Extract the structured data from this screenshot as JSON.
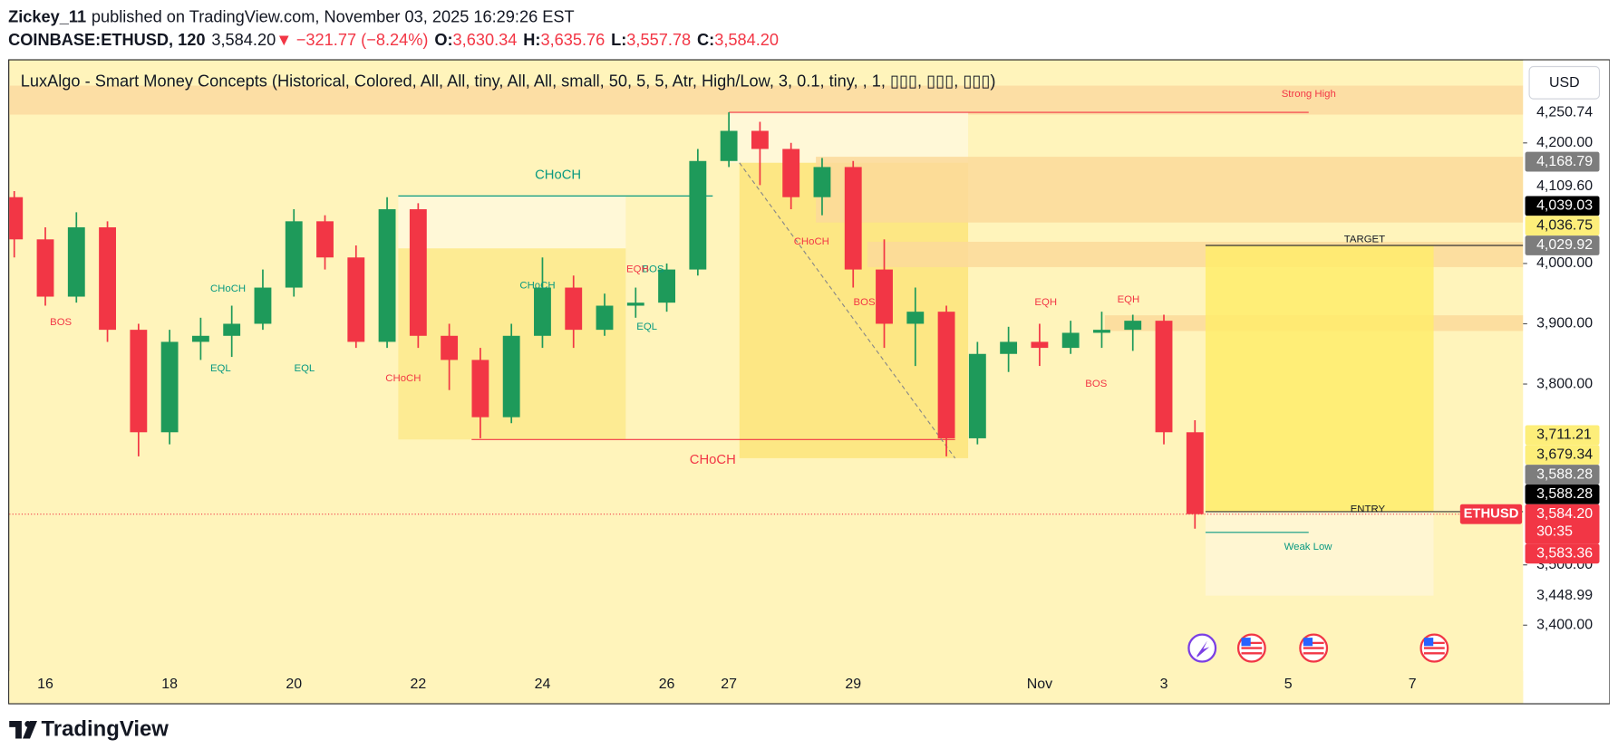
{
  "header": {
    "author": "Zickey_11",
    "published": "published on TradingView.com, November 03, 2025 16:29:26 EST",
    "symbol": "COINBASE:ETHUSD, 120",
    "price": "3,584.20",
    "arrow": "▼",
    "change": "−321.77 (−8.24%)",
    "o_label": "O:",
    "open": "3,630.34",
    "h_label": "H:",
    "high": "3,635.76",
    "l_label": "L:",
    "low": "3,557.78",
    "c_label": "C:",
    "close": "3,584.20"
  },
  "chart_data": {
    "type": "candlestick",
    "indicator_title": "LuxAlgo - Smart Money Concepts (Historical, Colored, All, All, tiny, All, All, small, 50, 5, 5, Atr, High/Low, 3, 0.1, tiny, , 1, ▯▯▯, ▯▯▯, ▯▯▯)",
    "currency": "USD",
    "symbol_tag": "ETHUSD",
    "countdown": "30:35",
    "up_color": "#1e9a5a",
    "down_color": "#f23645",
    "x": [
      15.5,
      16,
      16.5,
      17,
      17.5,
      18,
      18.5,
      19,
      19.5,
      20,
      20.5,
      21,
      21.5,
      22,
      22.5,
      23,
      23.5,
      24,
      24.5,
      25,
      25.5,
      26,
      26.5,
      27,
      27.5,
      28,
      28.5,
      29,
      29.5,
      30,
      30.5,
      31,
      31.5,
      32,
      32.5,
      33,
      33.5,
      34,
      34.5
    ],
    "open": [
      4110,
      4040,
      3945,
      4060,
      3890,
      3720,
      3870,
      3880,
      3900,
      3960,
      4070,
      4010,
      3870,
      4090,
      3880,
      3840,
      3745,
      3880,
      3960,
      3890,
      3930,
      3935,
      3990,
      4170,
      4220,
      4190,
      4110,
      4160,
      3990,
      3900,
      3920,
      3710,
      3850,
      3870,
      3860,
      3885,
      3890,
      3905,
      3720
    ],
    "high": [
      4120,
      4060,
      4085,
      4070,
      3900,
      3890,
      3910,
      3930,
      3990,
      4090,
      4080,
      4030,
      4110,
      4100,
      3900,
      3860,
      3900,
      4010,
      3980,
      3950,
      3960,
      4000,
      4190,
      4250.74,
      4235,
      4200,
      4175,
      4170,
      4040,
      3960,
      3930,
      3870,
      3895,
      3900,
      3905,
      3920,
      3915,
      3915,
      3740
    ],
    "low": [
      4010,
      3930,
      3935,
      3870,
      3680,
      3700,
      3840,
      3845,
      3890,
      3945,
      3990,
      3860,
      3860,
      3860,
      3790,
      3710,
      3735,
      3860,
      3860,
      3880,
      3910,
      3920,
      3980,
      4160,
      4130,
      4090,
      4080,
      3960,
      3860,
      3830,
      3680,
      3700,
      3820,
      3830,
      3850,
      3860,
      3855,
      3700,
      3560
    ],
    "close": [
      4040,
      3945,
      4060,
      3890,
      3720,
      3870,
      3880,
      3900,
      3960,
      4070,
      4010,
      3870,
      4090,
      3880,
      3840,
      3745,
      3880,
      3960,
      3890,
      3930,
      3935,
      3990,
      4170,
      4220,
      4190,
      4110,
      4160,
      3990,
      3900,
      3920,
      3710,
      3850,
      3870,
      3860,
      3885,
      3890,
      3905,
      3720,
      3584.2
    ],
    "xlim": [
      15.42,
      39.78
    ],
    "ylim": [
      3324,
      4337
    ],
    "xticks": [
      16,
      18,
      20,
      22,
      24,
      26,
      27,
      29,
      {
        "value": 32,
        "label": "Nov"
      },
      {
        "value": 34,
        "label": "3"
      },
      {
        "value": 36,
        "label": "5"
      },
      {
        "value": 38,
        "label": "7"
      }
    ],
    "yticks": [
      {
        "value": 3400,
        "label": "3,400.00"
      },
      {
        "value": 3500,
        "label": "3,500.00"
      },
      {
        "value": 3800,
        "label": "3,800.00"
      },
      {
        "value": 3900,
        "label": "3,900.00"
      },
      {
        "value": 4000,
        "label": "4,000.00"
      },
      {
        "value": 4200,
        "label": "4,200.00"
      }
    ],
    "price_tags": [
      {
        "value": 4250.74,
        "label": "4,250.74",
        "bg": "#ffffff",
        "fg": "#131722"
      },
      {
        "value": 4168.79,
        "label": "4,168.79",
        "bg": "#7d7d7d",
        "fg": "#ffffff"
      },
      {
        "value": 4109.6,
        "label": "4,109.60",
        "bg": "#ffffff",
        "fg": "#131722"
      },
      {
        "value": 4039.03,
        "label": "4,039.03",
        "bg": "#000000",
        "fg": "#ffffff"
      },
      {
        "value": 4036.75,
        "label": "4,036.75",
        "bg": "#fdee7a",
        "fg": "#131722"
      },
      {
        "value": 4029.92,
        "label": "4,029.92",
        "bg": "#7d7d7d",
        "fg": "#ffffff"
      },
      {
        "value": 3711.21,
        "label": "3,711.21",
        "bg": "#fdee7a",
        "fg": "#131722"
      },
      {
        "value": 3679.34,
        "label": "3,679.34",
        "bg": "#fdee7a",
        "fg": "#131722"
      },
      {
        "value": 3588.28,
        "label": "3,588.28",
        "bg": "#7d7d7d",
        "fg": "#ffffff"
      },
      {
        "value": 3588.28,
        "label": "3,588.28",
        "bg": "#000000",
        "fg": "#ffffff"
      },
      {
        "value": 3584.2,
        "label": "3,584.20",
        "bg": "#f23645",
        "fg": "#ffffff",
        "last": true
      },
      {
        "value": 3583.36,
        "label": "3,583.36",
        "bg": "#f23645",
        "fg": "#ffffff"
      },
      {
        "value": 3448.99,
        "label": "3,448.99",
        "bg": "#ffffff",
        "fg": "#131722"
      }
    ],
    "zones": [
      {
        "x": [
          15.42,
          39.78
        ],
        "y": [
          4247,
          4295
        ],
        "color": "#fcd9a0"
      },
      {
        "x": [
          21.68,
          25.34
        ],
        "y": [
          4025,
          4112
        ],
        "color": "#fff8dc"
      },
      {
        "x": [
          21.68,
          25.34
        ],
        "y": [
          3708,
          4025
        ],
        "color": "#fde98c"
      },
      {
        "x": [
          27.0,
          30.85
        ],
        "y": [
          4167,
          4250
        ],
        "color": "#fff8dc"
      },
      {
        "x": [
          27.17,
          30.85
        ],
        "y": [
          3677,
          4167
        ],
        "color": "#fde47a"
      },
      {
        "x": [
          28.4,
          39.78
        ],
        "y": [
          4068,
          4177
        ],
        "color": "#fbd99a"
      },
      {
        "x": [
          29.23,
          39.78
        ],
        "y": [
          3994,
          4036
        ],
        "color": "#fbd99a"
      },
      {
        "x": [
          33.05,
          39.78
        ],
        "y": [
          3888,
          3914
        ],
        "color": "#fbd99a"
      },
      {
        "x": [
          34.67,
          38.34
        ],
        "y": [
          3588.28,
          4029.92
        ],
        "color": "#ffec6b"
      },
      {
        "x": [
          34.67,
          38.34
        ],
        "y": [
          3448.99,
          3588.28
        ],
        "color": "#fff6d6"
      }
    ],
    "lines": [
      {
        "x": [
          27.0,
          36.33
        ],
        "y": [
          4250.74,
          4250.74
        ],
        "color": "#f23645"
      },
      {
        "x": [
          21.68,
          26.74
        ],
        "y": [
          4112,
          4112
        ],
        "color": "#089981"
      },
      {
        "x": [
          22.86,
          30.64
        ],
        "y": [
          3708,
          3708
        ],
        "color": "#f23645"
      },
      {
        "x": [
          34.67,
          39.78
        ],
        "y": [
          4029.92,
          4029.92
        ],
        "color": "#333333"
      },
      {
        "x": [
          34.67,
          39.78
        ],
        "y": [
          3588.28,
          3588.28
        ],
        "color": "#333333"
      },
      {
        "x": [
          34.67,
          36.33
        ],
        "y": [
          3554,
          3554
        ],
        "color": "#089981"
      },
      {
        "x": [
          27.17,
          30.64
        ],
        "y": [
          4167,
          3677
        ],
        "color": "#888888",
        "dash": true
      }
    ],
    "annotations": [
      {
        "text": "Strong High",
        "x": 36.33,
        "y": 4281,
        "color": "#f23645",
        "size": 10
      },
      {
        "text": "TARGET",
        "x": 37.23,
        "y": 4040,
        "color": "#131722",
        "size": 10
      },
      {
        "text": "ENTRY",
        "x": 37.28,
        "y": 3592,
        "color": "#131722",
        "size": 10
      },
      {
        "text": "Weak Low",
        "x": 36.32,
        "y": 3530,
        "color": "#089981",
        "size": 10
      },
      {
        "text": "CHoCH",
        "x": 24.25,
        "y": 4146,
        "color": "#089981",
        "size": 13
      },
      {
        "text": "CHoCH",
        "x": 26.74,
        "y": 3674,
        "color": "#f23645",
        "size": 13
      },
      {
        "text": "CHoCH",
        "x": 18.94,
        "y": 3958,
        "color": "#089981",
        "size": 10
      },
      {
        "text": "CHoCH",
        "x": 23.92,
        "y": 3963,
        "color": "#089981",
        "size": 10
      },
      {
        "text": "CHoCH",
        "x": 21.76,
        "y": 3809,
        "color": "#f23645",
        "size": 10
      },
      {
        "text": "CHoCH",
        "x": 28.33,
        "y": 4036,
        "color": "#f23645",
        "size": 10
      },
      {
        "text": "BOS",
        "x": 16.25,
        "y": 3902,
        "color": "#f23645",
        "size": 10
      },
      {
        "text": "BOS",
        "x": 29.18,
        "y": 3935,
        "color": "#f23645",
        "size": 10
      },
      {
        "text": "BOS",
        "x": 32.91,
        "y": 3800,
        "color": "#f23645",
        "size": 10
      },
      {
        "text": "BOS",
        "x": 25.78,
        "y": 3990,
        "color": "#089981",
        "size": 10
      },
      {
        "text": "EQH",
        "x": 25.53,
        "y": 3990,
        "color": "#f23645",
        "size": 10
      },
      {
        "text": "EQH",
        "x": 32.1,
        "y": 3935,
        "color": "#f23645",
        "size": 10
      },
      {
        "text": "EQH",
        "x": 33.43,
        "y": 3940,
        "color": "#f23645",
        "size": 10
      },
      {
        "text": "EQL",
        "x": 18.82,
        "y": 3826,
        "color": "#089981",
        "size": 10
      },
      {
        "text": "EQL",
        "x": 20.17,
        "y": 3826,
        "color": "#089981",
        "size": 10
      },
      {
        "text": "EQL",
        "x": 25.68,
        "y": 3895,
        "color": "#089981",
        "size": 10
      }
    ]
  },
  "footer": {
    "logo": "TradingView"
  }
}
